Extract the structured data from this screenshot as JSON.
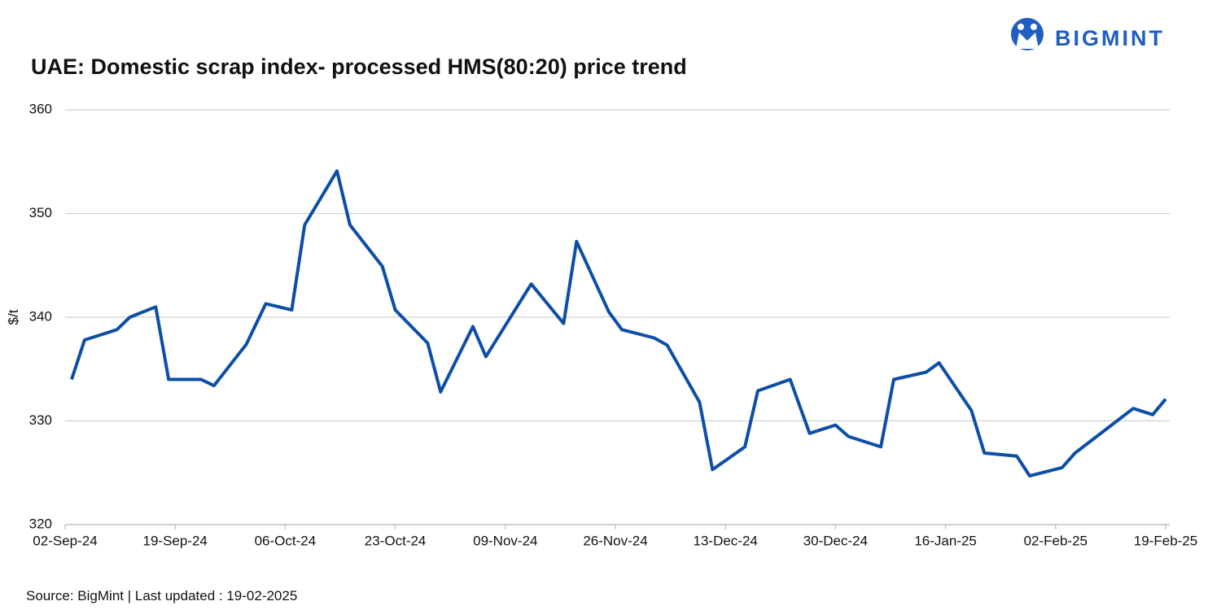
{
  "chart_data": {
    "type": "line",
    "title": "UAE: Domestic scrap index- processed HMS(80:20) price trend",
    "brand": "BIGMINT",
    "source": "Source: BigMint | Last updated : 19-02-2025",
    "y_label": "$/t",
    "x": [
      "2024-09-03",
      "2024-09-05",
      "2024-09-10",
      "2024-09-12",
      "2024-09-16",
      "2024-09-18",
      "2024-09-23",
      "2024-09-25",
      "2024-09-30",
      "2024-10-03",
      "2024-10-07",
      "2024-10-09",
      "2024-10-14",
      "2024-10-16",
      "2024-10-21",
      "2024-10-23",
      "2024-10-28",
      "2024-10-30",
      "2024-11-04",
      "2024-11-06",
      "2024-11-11",
      "2024-11-13",
      "2024-11-18",
      "2024-11-20",
      "2024-11-25",
      "2024-11-27",
      "2024-12-02",
      "2024-12-04",
      "2024-12-09",
      "2024-12-11",
      "2024-12-16",
      "2024-12-18",
      "2024-12-23",
      "2024-12-26",
      "2024-12-30",
      "2025-01-01",
      "2025-01-06",
      "2025-01-08",
      "2025-01-13",
      "2025-01-15",
      "2025-01-20",
      "2025-01-22",
      "2025-01-27",
      "2025-01-29",
      "2025-02-03",
      "2025-02-05",
      "2025-02-14",
      "2025-02-17",
      "2025-02-19"
    ],
    "series": [
      {
        "name": "UAE processed HMS(80:20)",
        "color": "#0d4ea6",
        "values": [
          334.0,
          337.8,
          338.8,
          340.0,
          341.0,
          334.0,
          334.0,
          333.4,
          337.4,
          341.3,
          340.7,
          348.9,
          354.1,
          348.9,
          344.9,
          340.7,
          337.5,
          332.8,
          339.1,
          336.2,
          341.2,
          343.2,
          339.4,
          347.3,
          340.5,
          338.8,
          338.0,
          337.3,
          331.8,
          325.3,
          327.5,
          332.9,
          334.0,
          328.8,
          329.6,
          328.5,
          327.5,
          334.0,
          334.7,
          335.6,
          331.0,
          326.9,
          326.6,
          324.7,
          325.5,
          326.9,
          331.2,
          330.6,
          332.1
        ]
      }
    ],
    "xlim": [
      "2024-09-02",
      "2025-02-19"
    ],
    "xticks": [
      {
        "value": "2024-09-02",
        "label": "02-Sep-24"
      },
      {
        "value": "2024-09-19",
        "label": "19-Sep-24"
      },
      {
        "value": "2024-10-06",
        "label": "06-Oct-24"
      },
      {
        "value": "2024-10-23",
        "label": "23-Oct-24"
      },
      {
        "value": "2024-11-09",
        "label": "09-Nov-24"
      },
      {
        "value": "2024-11-26",
        "label": "26-Nov-24"
      },
      {
        "value": "2024-12-13",
        "label": "13-Dec-24"
      },
      {
        "value": "2024-12-30",
        "label": "30-Dec-24"
      },
      {
        "value": "2025-01-16",
        "label": "16-Jan-25"
      },
      {
        "value": "2025-02-02",
        "label": "02-Feb-25"
      },
      {
        "value": "2025-02-19",
        "label": "19-Feb-25"
      }
    ],
    "ylim": [
      320,
      360
    ],
    "yticks": [
      320,
      330,
      340,
      350,
      360
    ],
    "grid": true
  }
}
